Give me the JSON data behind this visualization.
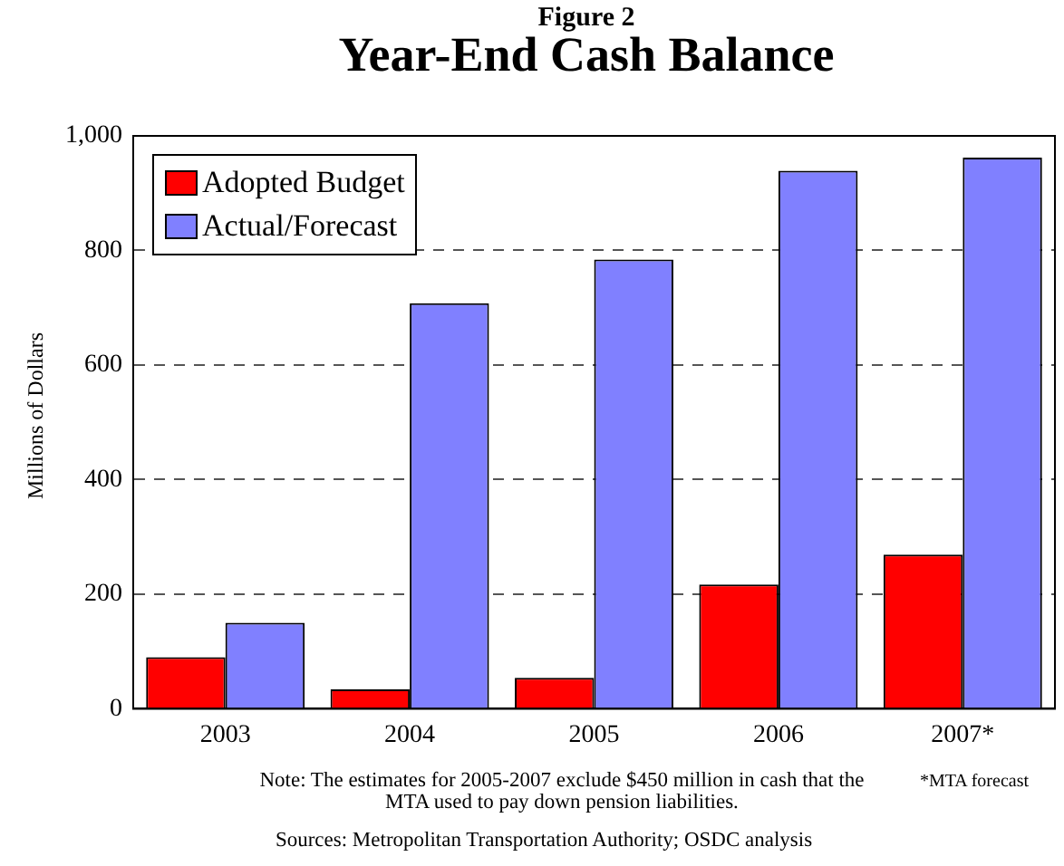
{
  "chart_data": {
    "type": "bar",
    "title": "Year-End Cash Balance",
    "subtitle": "Figure 2",
    "ylabel": "Millions of Dollars",
    "categories": [
      "2003",
      "2004",
      "2005",
      "2006",
      "2007*"
    ],
    "series": [
      {
        "name": "Adopted Budget",
        "color": "#ff0000",
        "values": [
          90,
          34,
          54,
          217,
          269
        ]
      },
      {
        "name": "Actual/Forecast",
        "color": "#8080ff",
        "values": [
          150,
          708,
          784,
          939,
          962
        ]
      }
    ],
    "ylim": [
      0,
      1000
    ],
    "yticks": [
      0,
      200,
      400,
      600,
      800,
      {
        "value": 1000,
        "label": "1,000"
      }
    ],
    "grid": "y",
    "line_style": "dashed",
    "legend": "top left",
    "annotations": [
      "Note: The estimates for 2005-2007 exclude $450 million in cash that the MTA used to pay down pension liabilities.",
      "*MTA forecast",
      "Sources: Metropolitan Transportation Authority; OSDC analysis"
    ]
  }
}
